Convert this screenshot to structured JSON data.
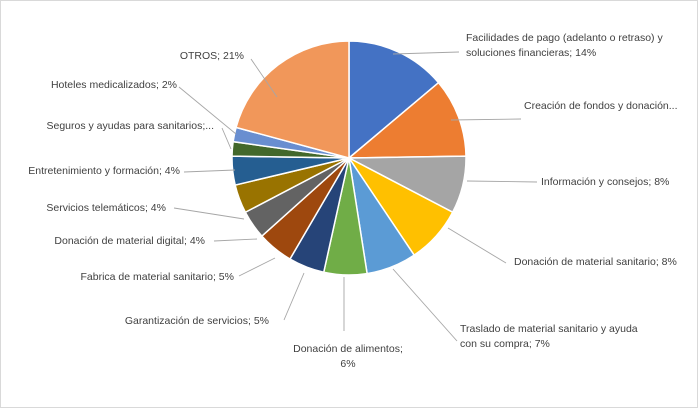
{
  "chart_data": {
    "type": "pie",
    "title": "",
    "slices": [
      {
        "label": [
          "Facilidades de pago (adelanto o retraso) y",
          "soluciones financieras; 14%"
        ],
        "value": 14,
        "color": "#4472C4"
      },
      {
        "label": [
          "Creación de fondos y donación..."
        ],
        "value": 11,
        "color": "#ED7D31"
      },
      {
        "label": [
          "Información y consejos; 8%"
        ],
        "value": 8,
        "color": "#A5A5A5"
      },
      {
        "label": [
          "Donación de material sanitario; 8%"
        ],
        "value": 8,
        "color": "#FFC000"
      },
      {
        "label": [
          "Traslado de material sanitario y ayuda",
          "con su compra; 7%"
        ],
        "value": 7,
        "color": "#5B9BD5"
      },
      {
        "label": [
          "Donación de alimentos;",
          "6%"
        ],
        "value": 6,
        "color": "#70AD47"
      },
      {
        "label": [
          "Garantización de servicios; 5%"
        ],
        "value": 5,
        "color": "#264478"
      },
      {
        "label": [
          "Fabrica de material sanitario; 5%"
        ],
        "value": 5,
        "color": "#9E480E"
      },
      {
        "label": [
          "Donación de material digital; 4%"
        ],
        "value": 4,
        "color": "#636363"
      },
      {
        "label": [
          "Servicios telemáticos; 4%"
        ],
        "value": 4,
        "color": "#997300"
      },
      {
        "label": [
          "Entretenimiento y formación; 4%"
        ],
        "value": 4,
        "color": "#255E91"
      },
      {
        "label": [
          "Seguros y ayudas para sanitarios;..."
        ],
        "value": 2,
        "color": "#43682B"
      },
      {
        "label": [
          "Hoteles medicalizados; 2%"
        ],
        "value": 2,
        "color": "#698ED0"
      },
      {
        "label": [
          "OTROS; 21%"
        ],
        "value": 21,
        "color": "#F1975A"
      }
    ]
  }
}
